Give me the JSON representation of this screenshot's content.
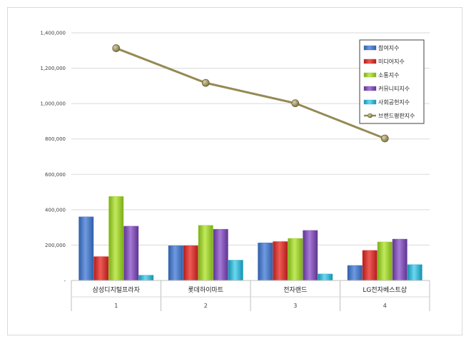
{
  "chart_data": {
    "type": "bar",
    "categories": [
      "삼성디지털프라자",
      "롯데하이마트",
      "전자랜드",
      "LG전자베스트샵"
    ],
    "category_index": [
      "1",
      "2",
      "3",
      "4"
    ],
    "series": [
      {
        "name": "참여지수",
        "values": [
          360000,
          197000,
          213000,
          85000
        ],
        "color": "#4472c4"
      },
      {
        "name": "미디어지수",
        "values": [
          135000,
          197000,
          220000,
          170000
        ],
        "color": "#d9302c"
      },
      {
        "name": "소통지수",
        "values": [
          475000,
          312000,
          238000,
          218000
        ],
        "color": "#9bcf2c"
      },
      {
        "name": "커뮤니티지수",
        "values": [
          307000,
          290000,
          283000,
          234000
        ],
        "color": "#8050b3"
      },
      {
        "name": "사회공헌지수",
        "values": [
          30000,
          115000,
          37000,
          90000
        ],
        "color": "#2fb5d4"
      }
    ],
    "line_series": {
      "name": "브랜드평판지수",
      "values": [
        1313000,
        1117000,
        1002000,
        803000
      ],
      "color": "#948a54"
    },
    "ylim": [
      0,
      1400000
    ],
    "yticks": [
      "-",
      "200,000",
      "400,000",
      "600,000",
      "800,000",
      "1,000,000",
      "1,200,000",
      "1,400,000"
    ],
    "grid": true,
    "legend_position": "top-right"
  }
}
